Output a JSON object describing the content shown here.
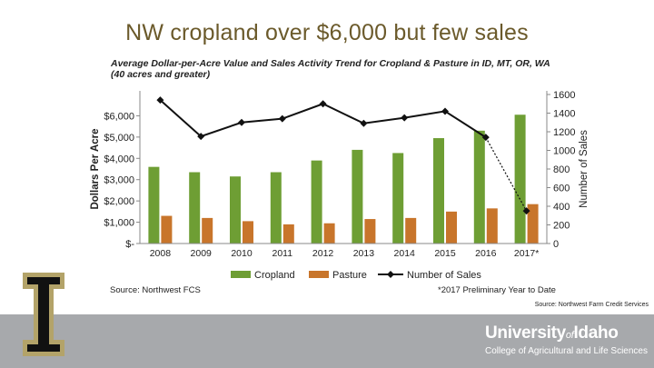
{
  "slide": {
    "title": "NW cropland over $6,000 but few sales",
    "source_note": "Source: Northwest Farm Credit Services"
  },
  "footer": {
    "university": "University",
    "university_of": "of",
    "university_idaho": "Idaho",
    "college": "College of Agricultural and Life Sciences"
  },
  "chart_data": {
    "type": "bar",
    "title": "Average Dollar-per-Acre Value and Sales Activity Trend for Cropland & Pasture in ID, MT, OR, WA (40 acres and greater)",
    "title_line1": "Average Dollar-per-Acre Value and Sales Activity Trend for Cropland & Pasture in ID, MT, OR, WA",
    "title_line2": "(40 acres and greater)",
    "ylabel": "Dollars Per Acre",
    "y2label": "Number of Sales",
    "categories": [
      "2008",
      "2009",
      "2010",
      "2011",
      "2012",
      "2013",
      "2014",
      "2015",
      "2016",
      "2017*"
    ],
    "ylim": [
      0,
      7000
    ],
    "y2lim": [
      0,
      1600
    ],
    "y_ticks": [
      0,
      1000,
      2000,
      3000,
      4000,
      5000,
      6000
    ],
    "y_tick_labels": [
      "$-",
      "$1,000",
      "$2,000",
      "$3,000",
      "$4,000",
      "$5,000",
      "$6,000"
    ],
    "y2_ticks": [
      0,
      200,
      400,
      600,
      800,
      1000,
      1200,
      1400,
      1600
    ],
    "y2_tick_labels": [
      "0",
      "200",
      "400",
      "600",
      "800",
      "1000",
      "1200",
      "1400",
      "1600"
    ],
    "series": [
      {
        "name": "Cropland",
        "type": "bar",
        "axis": "left",
        "color": "#6e9e34",
        "values": [
          3600,
          3350,
          3150,
          3350,
          3900,
          4400,
          4250,
          4950,
          5300,
          6050
        ]
      },
      {
        "name": "Pasture",
        "type": "bar",
        "axis": "left",
        "color": "#c8752b",
        "values": [
          1300,
          1200,
          1050,
          900,
          950,
          1150,
          1200,
          1500,
          1650,
          1850
        ]
      },
      {
        "name": "Number of Sales",
        "type": "line",
        "axis": "right",
        "color": "#111111",
        "values": [
          1540,
          1150,
          1300,
          1340,
          1500,
          1290,
          1350,
          1420,
          1140,
          350
        ],
        "dashed_last_segment": true
      }
    ],
    "legend": [
      "Cropland",
      "Pasture",
      "Number of Sales"
    ],
    "legend_position": "bottom",
    "source": "Source: Northwest FCS",
    "footnote": "*2017 Preliminary Year to Date",
    "grid": false
  },
  "colors": {
    "title": "#6b5a2b",
    "footer_bar": "#a7a9ac",
    "logo_gold": "#b3a369",
    "logo_black": "#111111"
  }
}
